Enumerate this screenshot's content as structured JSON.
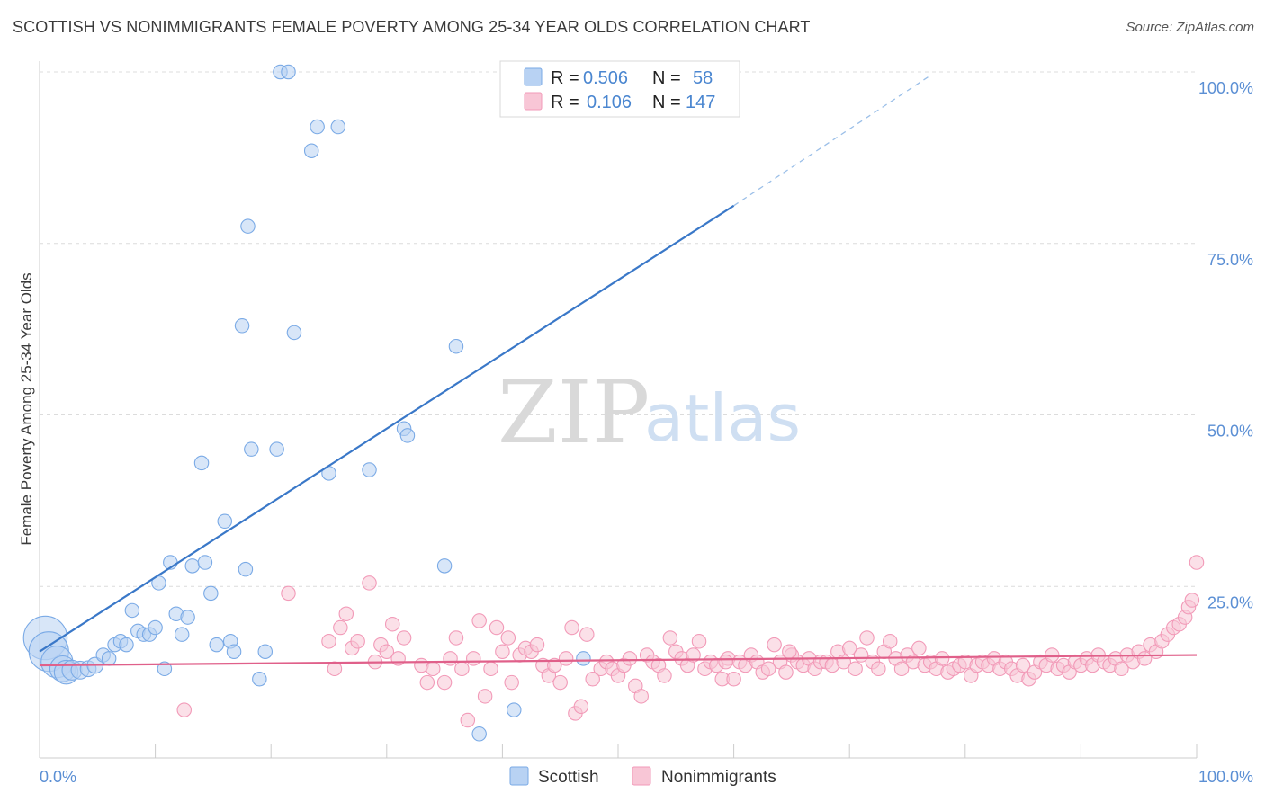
{
  "chart_data": {
    "type": "scatter",
    "title": "SCOTTISH VS NONIMMIGRANTS FEMALE POVERTY AMONG 25-34 YEAR OLDS CORRELATION CHART",
    "source": "Source: ZipAtlas.com",
    "ylabel": "Female Poverty Among 25-34 Year Olds",
    "xlim": [
      0,
      100
    ],
    "ylim": [
      0,
      100
    ],
    "x_tick_labels": [
      "0.0%",
      "100.0%"
    ],
    "y_ticks": [
      {
        "value": 100,
        "label": "100.0%"
      },
      {
        "value": 75,
        "label": "75.0%"
      },
      {
        "value": 50,
        "label": "50.0%"
      },
      {
        "value": 25,
        "label": "25.0%"
      }
    ],
    "grid": true,
    "watermark": {
      "zip": "ZIP",
      "atlas": "atlas"
    },
    "legend": {
      "position": "top-center",
      "rows": [
        {
          "r_label": "R =",
          "r_value": "0.506",
          "n_label": "N =",
          "n_value": "58"
        },
        {
          "r_label": "R =",
          "r_value": "0.106",
          "n_label": "N =",
          "n_value": "147"
        }
      ]
    },
    "series": [
      {
        "name": "Scottish",
        "color": "#7aaae6",
        "fill": "#b8d2f3",
        "line_color": "#3a78c8",
        "trend": {
          "x0": 0,
          "y0": 15.5,
          "x1": 60,
          "y1": 80.5,
          "dash_x1": 77,
          "dash_y1": 99.5
        },
        "points": [
          [
            0.5,
            17.5,
            2.2
          ],
          [
            0.8,
            15.5,
            2.0
          ],
          [
            1.5,
            14.0,
            1.6
          ],
          [
            2,
            13.0,
            1.3
          ],
          [
            2.3,
            12.5,
            1.2
          ],
          [
            2.8,
            12.8,
            1.0
          ],
          [
            3.5,
            12.8,
            0.9
          ],
          [
            4.2,
            13.0,
            0.8
          ],
          [
            4.8,
            13.5,
            0.8
          ],
          [
            5.5,
            15.0,
            0.7
          ],
          [
            6,
            14.5,
            0.7
          ],
          [
            6.5,
            16.5,
            0.7
          ],
          [
            7,
            17.0,
            0.7
          ],
          [
            7.5,
            16.5,
            0.7
          ],
          [
            8,
            21.5,
            0.7
          ],
          [
            8.5,
            18.5,
            0.7
          ],
          [
            9,
            18.0,
            0.7
          ],
          [
            9.5,
            18.0,
            0.7
          ],
          [
            10,
            19.0,
            0.7
          ],
          [
            10.3,
            25.5,
            0.7
          ],
          [
            10.8,
            13.0,
            0.7
          ],
          [
            11.3,
            28.5,
            0.7
          ],
          [
            11.8,
            21.0,
            0.7
          ],
          [
            12.3,
            18.0,
            0.7
          ],
          [
            12.8,
            20.5,
            0.7
          ],
          [
            13.2,
            28.0,
            0.7
          ],
          [
            14,
            43.0,
            0.7
          ],
          [
            14.3,
            28.5,
            0.7
          ],
          [
            14.8,
            24.0,
            0.7
          ],
          [
            15.3,
            16.5,
            0.7
          ],
          [
            16,
            34.5,
            0.7
          ],
          [
            16.5,
            17.0,
            0.7
          ],
          [
            16.8,
            15.5,
            0.7
          ],
          [
            17.5,
            63.0,
            0.7
          ],
          [
            17.8,
            27.5,
            0.7
          ],
          [
            18,
            77.5,
            0.7
          ],
          [
            18.3,
            45.0,
            0.7
          ],
          [
            19,
            11.5,
            0.7
          ],
          [
            19.5,
            15.5,
            0.7
          ],
          [
            20.5,
            45.0,
            0.7
          ],
          [
            20.8,
            100.0,
            0.7
          ],
          [
            21.5,
            100.0,
            0.7
          ],
          [
            22,
            62.0,
            0.7
          ],
          [
            23.5,
            88.5,
            0.7
          ],
          [
            24,
            92.0,
            0.7
          ],
          [
            25,
            41.5,
            0.7
          ],
          [
            25.8,
            92.0,
            0.7
          ],
          [
            28.5,
            42.0,
            0.7
          ],
          [
            31.5,
            48.0,
            0.7
          ],
          [
            31.8,
            47.0,
            0.7
          ],
          [
            35,
            28.0,
            0.7
          ],
          [
            36,
            60.0,
            0.7
          ],
          [
            38,
            3.5,
            0.7
          ],
          [
            41,
            7.0,
            0.7
          ],
          [
            47,
            14.5,
            0.7
          ]
        ]
      },
      {
        "name": "Nonimmigrants",
        "color": "#f29ab8",
        "fill": "#f8c6d6",
        "line_color": "#e0608a",
        "trend": {
          "x0": 0,
          "y0": 13.5,
          "x1": 100,
          "y1": 15.0
        },
        "points": [
          [
            12.5,
            7.0,
            0.7
          ],
          [
            21.5,
            24.0,
            0.7
          ],
          [
            25,
            17.0,
            0.7
          ],
          [
            25.5,
            13.0,
            0.7
          ],
          [
            26,
            19.0,
            0.7
          ],
          [
            26.5,
            21.0,
            0.7
          ],
          [
            27,
            16.0,
            0.7
          ],
          [
            27.5,
            17.0,
            0.7
          ],
          [
            28.5,
            25.5,
            0.7
          ],
          [
            29,
            14.0,
            0.7
          ],
          [
            29.5,
            16.5,
            0.7
          ],
          [
            30,
            15.5,
            0.7
          ],
          [
            30.5,
            19.5,
            0.7
          ],
          [
            31,
            14.5,
            0.7
          ],
          [
            31.5,
            17.5,
            0.7
          ],
          [
            33,
            13.5,
            0.7
          ],
          [
            33.5,
            11.0,
            0.7
          ],
          [
            34,
            13.0,
            0.7
          ],
          [
            35,
            11.0,
            0.7
          ],
          [
            35.5,
            14.5,
            0.7
          ],
          [
            36,
            17.5,
            0.7
          ],
          [
            36.5,
            13.0,
            0.7
          ],
          [
            37,
            5.5,
            0.7
          ],
          [
            37.5,
            14.5,
            0.7
          ],
          [
            38,
            20.0,
            0.7
          ],
          [
            38.5,
            9.0,
            0.7
          ],
          [
            39,
            13.0,
            0.7
          ],
          [
            39.5,
            19.0,
            0.7
          ],
          [
            40,
            15.5,
            0.7
          ],
          [
            40.5,
            17.5,
            0.7
          ],
          [
            40.8,
            11.0,
            0.7
          ],
          [
            41.5,
            15.0,
            0.7
          ],
          [
            42,
            16.0,
            0.7
          ],
          [
            42.5,
            15.5,
            0.7
          ],
          [
            43,
            16.5,
            0.7
          ],
          [
            43.5,
            13.5,
            0.7
          ],
          [
            44,
            12.0,
            0.7
          ],
          [
            44.5,
            13.5,
            0.7
          ],
          [
            45,
            11.0,
            0.7
          ],
          [
            45.5,
            14.5,
            0.7
          ],
          [
            46,
            19.0,
            0.7
          ],
          [
            46.3,
            6.5,
            0.7
          ],
          [
            46.8,
            7.5,
            0.7
          ],
          [
            47.3,
            18.0,
            0.7
          ],
          [
            47.8,
            11.5,
            0.7
          ],
          [
            48.5,
            13.0,
            0.7
          ],
          [
            49,
            14.0,
            0.7
          ],
          [
            49.5,
            13.0,
            0.7
          ],
          [
            50,
            12.0,
            0.7
          ],
          [
            50.5,
            13.5,
            0.7
          ],
          [
            51,
            14.5,
            0.7
          ],
          [
            51.5,
            10.5,
            0.7
          ],
          [
            52,
            9.0,
            0.7
          ],
          [
            52.5,
            15.0,
            0.7
          ],
          [
            53,
            14.0,
            0.7
          ],
          [
            53.5,
            13.5,
            0.7
          ],
          [
            54,
            12.0,
            0.7
          ],
          [
            54.5,
            17.5,
            0.7
          ],
          [
            55,
            15.5,
            0.7
          ],
          [
            55.5,
            14.5,
            0.7
          ],
          [
            56,
            13.5,
            0.7
          ],
          [
            56.5,
            15.0,
            0.7
          ],
          [
            57,
            17.0,
            0.7
          ],
          [
            57.5,
            13.0,
            0.7
          ],
          [
            58,
            14.0,
            0.7
          ],
          [
            58.5,
            13.5,
            0.7
          ],
          [
            59,
            11.5,
            0.7
          ],
          [
            59.5,
            14.5,
            0.7
          ],
          [
            60,
            11.5,
            0.7
          ],
          [
            60.5,
            14.0,
            0.7
          ],
          [
            61,
            13.5,
            0.7
          ],
          [
            61.5,
            15.0,
            0.7
          ],
          [
            62,
            14.0,
            0.7
          ],
          [
            62.5,
            12.5,
            0.7
          ],
          [
            63,
            13.0,
            0.7
          ],
          [
            63.5,
            16.5,
            0.7
          ],
          [
            64,
            14.0,
            0.7
          ],
          [
            64.5,
            12.5,
            0.7
          ],
          [
            65,
            15.0,
            0.7
          ],
          [
            65.5,
            14.0,
            0.7
          ],
          [
            66,
            13.5,
            0.7
          ],
          [
            66.5,
            14.5,
            0.7
          ],
          [
            67,
            13.0,
            0.7
          ],
          [
            67.5,
            14.0,
            0.7
          ],
          [
            68,
            14.0,
            0.7
          ],
          [
            68.5,
            13.5,
            0.7
          ],
          [
            69,
            15.5,
            0.7
          ],
          [
            69.5,
            14.0,
            0.7
          ],
          [
            70,
            16.0,
            0.7
          ],
          [
            70.5,
            13.0,
            0.7
          ],
          [
            71,
            15.0,
            0.7
          ],
          [
            71.5,
            17.5,
            0.7
          ],
          [
            72,
            14.0,
            0.7
          ],
          [
            72.5,
            13.0,
            0.7
          ],
          [
            73,
            15.5,
            0.7
          ],
          [
            73.5,
            17.0,
            0.7
          ],
          [
            74,
            14.5,
            0.7
          ],
          [
            74.5,
            13.0,
            0.7
          ],
          [
            75,
            15.0,
            0.7
          ],
          [
            75.5,
            14.0,
            0.7
          ],
          [
            76,
            16.0,
            0.7
          ],
          [
            76.5,
            13.5,
            0.7
          ],
          [
            77,
            14.0,
            0.7
          ],
          [
            77.5,
            13.0,
            0.7
          ],
          [
            78,
            14.5,
            0.7
          ],
          [
            78.5,
            12.5,
            0.7
          ],
          [
            79,
            13.0,
            0.7
          ],
          [
            79.5,
            13.5,
            0.7
          ],
          [
            80,
            14.0,
            0.7
          ],
          [
            80.5,
            12.0,
            0.7
          ],
          [
            81,
            13.5,
            0.7
          ],
          [
            81.5,
            14.0,
            0.7
          ],
          [
            82,
            13.5,
            0.7
          ],
          [
            82.5,
            14.5,
            0.7
          ],
          [
            83,
            13.0,
            0.7
          ],
          [
            83.5,
            14.0,
            0.7
          ],
          [
            84,
            13.0,
            0.7
          ],
          [
            84.5,
            12.0,
            0.7
          ],
          [
            85,
            13.5,
            0.7
          ],
          [
            85.5,
            11.5,
            0.7
          ],
          [
            86,
            12.5,
            0.7
          ],
          [
            86.5,
            14.0,
            0.7
          ],
          [
            87,
            13.5,
            0.7
          ],
          [
            87.5,
            15.0,
            0.7
          ],
          [
            88,
            13.0,
            0.7
          ],
          [
            88.5,
            13.5,
            0.7
          ],
          [
            89,
            12.5,
            0.7
          ],
          [
            89.5,
            14.0,
            0.7
          ],
          [
            90,
            13.5,
            0.7
          ],
          [
            90.5,
            14.5,
            0.7
          ],
          [
            91,
            13.5,
            0.7
          ],
          [
            91.5,
            15.0,
            0.7
          ],
          [
            92,
            14.0,
            0.7
          ],
          [
            92.5,
            13.5,
            0.7
          ],
          [
            93,
            14.5,
            0.7
          ],
          [
            93.5,
            13.0,
            0.7
          ],
          [
            94,
            15.0,
            0.7
          ],
          [
            94.5,
            14.0,
            0.7
          ],
          [
            95,
            15.5,
            0.7
          ],
          [
            95.5,
            14.5,
            0.7
          ],
          [
            96,
            16.5,
            0.7
          ],
          [
            96.5,
            15.5,
            0.7
          ],
          [
            97,
            17.0,
            0.7
          ],
          [
            97.5,
            18.0,
            0.7
          ],
          [
            98,
            19.0,
            0.7
          ],
          [
            98.5,
            19.5,
            0.7
          ],
          [
            99,
            20.5,
            0.7
          ],
          [
            99.3,
            22.0,
            0.7
          ],
          [
            99.6,
            23.0,
            0.7
          ],
          [
            100,
            28.5,
            0.7
          ],
          [
            59.3,
            14.0,
            0.7
          ],
          [
            64.8,
            15.5,
            0.7
          ]
        ]
      }
    ]
  }
}
